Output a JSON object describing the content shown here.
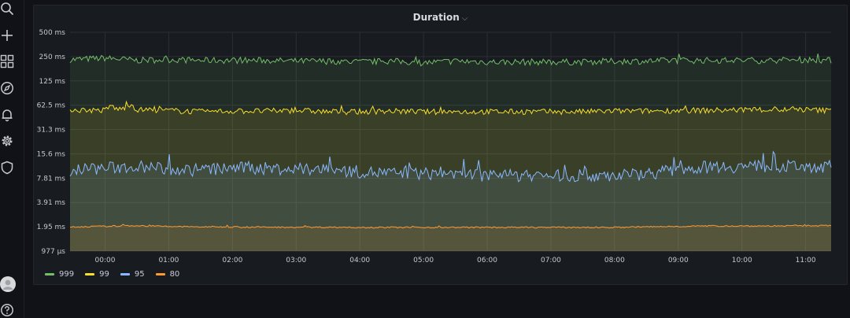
{
  "sidebar": {
    "top_icons": [
      "search-icon",
      "plus-icon",
      "dashboards-icon",
      "explore-icon",
      "alerting-icon",
      "gear-icon",
      "shield-icon"
    ],
    "bottom_icons": [
      "avatar",
      "help-icon"
    ]
  },
  "panel": {
    "title": "Duration",
    "chevron": "⌵"
  },
  "colors": {
    "background": "#111217",
    "panel": "#181b1f",
    "grid": "#2c2f35",
    "text": "#c7c8cc"
  },
  "chart_data": {
    "type": "area",
    "title": "Duration",
    "xlabel": "",
    "ylabel": "",
    "y_scale": "log2",
    "y_unit": "ms",
    "ylim_ms": [
      0.977,
      500
    ],
    "x_range_hours": [
      -0.55,
      11.4
    ],
    "x_ticks": [
      "00:00",
      "01:00",
      "02:00",
      "03:00",
      "04:00",
      "05:00",
      "06:00",
      "07:00",
      "08:00",
      "09:00",
      "10:00",
      "11:00"
    ],
    "y_ticks": [
      {
        "label": "500 ms",
        "value": 500
      },
      {
        "label": "250 ms",
        "value": 250
      },
      {
        "label": "125 ms",
        "value": 125
      },
      {
        "label": "62.5 ms",
        "value": 62.5
      },
      {
        "label": "31.3 ms",
        "value": 31.3
      },
      {
        "label": "15.6 ms",
        "value": 15.6
      },
      {
        "label": "7.81 ms",
        "value": 7.81
      },
      {
        "label": "3.91 ms",
        "value": 3.91
      },
      {
        "label": "1.95 ms",
        "value": 1.95
      },
      {
        "label": "977 µs",
        "value": 0.977
      }
    ],
    "legend_position": "bottom-left",
    "grid": true,
    "series": [
      {
        "name": "999",
        "color": "#73bf69",
        "x": [
          -0.5,
          0,
          0.5,
          1,
          1.5,
          2,
          2.5,
          3,
          3.5,
          4,
          4.5,
          5,
          5.5,
          6,
          6.5,
          7,
          7.5,
          8,
          8.5,
          9,
          9.5,
          10,
          10.5,
          11,
          11.35
        ],
        "y": [
          230,
          240,
          225,
          230,
          225,
          225,
          225,
          220,
          220,
          215,
          220,
          210,
          220,
          215,
          215,
          215,
          215,
          220,
          220,
          225,
          225,
          225,
          225,
          230,
          225
        ]
      },
      {
        "name": "99",
        "color": "#fade2a",
        "x": [
          -0.5,
          0,
          0.1,
          0.2,
          0.3,
          0.4,
          0.5,
          1,
          1.5,
          2,
          2.5,
          3,
          3.5,
          4,
          4.5,
          5,
          5.5,
          6,
          6.5,
          7,
          7.5,
          8,
          8.5,
          9,
          9.5,
          10,
          10.5,
          11,
          11.35
        ],
        "y": [
          55,
          54,
          62,
          55,
          58,
          65,
          55,
          54,
          52,
          53,
          53,
          54,
          52,
          52,
          53,
          52,
          52,
          52,
          52,
          52,
          52,
          53,
          53,
          54,
          54,
          55,
          55,
          55,
          54
        ]
      },
      {
        "name": "95",
        "color": "#8ab8ff",
        "x": [
          -0.5,
          0,
          0.5,
          1,
          1.5,
          2,
          2.5,
          3,
          3.5,
          4,
          4.5,
          5,
          5.5,
          6,
          6.5,
          7,
          7.5,
          8,
          8.5,
          9,
          9.5,
          10,
          10.5,
          11,
          11.35
        ],
        "y": [
          10,
          10.5,
          11,
          10,
          10,
          10.5,
          10.5,
          10,
          10,
          9.5,
          9,
          9,
          9,
          8.5,
          8.5,
          8.5,
          8.5,
          8.5,
          9,
          10,
          11,
          11,
          11,
          11,
          11
        ]
      },
      {
        "name": "80",
        "color": "#ff9830",
        "x": [
          -0.5,
          0,
          0.5,
          1,
          1.5,
          2,
          2.5,
          3,
          3.5,
          4,
          4.5,
          5,
          5.5,
          6,
          6.5,
          7,
          7.5,
          8,
          8.5,
          9,
          9.5,
          10,
          10.5,
          11,
          11.35
        ],
        "y": [
          1.95,
          1.98,
          2.02,
          1.97,
          1.95,
          1.95,
          1.93,
          1.93,
          1.93,
          1.92,
          1.92,
          1.92,
          1.92,
          1.92,
          1.92,
          1.92,
          1.92,
          1.92,
          1.95,
          1.98,
          2.0,
          2.0,
          2.0,
          2.02,
          2.02
        ]
      }
    ]
  }
}
